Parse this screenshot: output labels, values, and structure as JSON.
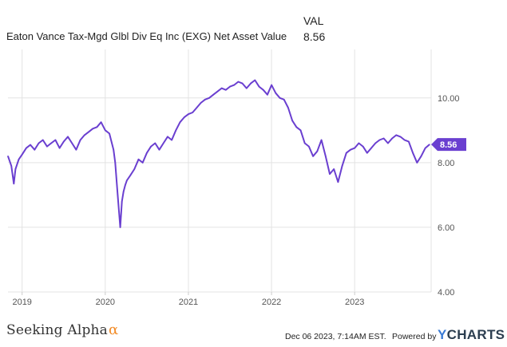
{
  "legend": {
    "column_header": "VAL",
    "series_name": "Eaton Vance Tax-Mgd Glbl Div Eq Inc (EXG) Net Asset Value",
    "series_value": "8.56"
  },
  "footer": {
    "brand_left": "Seeking Alpha",
    "brand_left_symbol": "α",
    "timestamp": "Dec 06 2023, 7:14AM EST.",
    "powered_by": "Powered by",
    "brand_right_prefix": "Y",
    "brand_right": "CHARTS"
  },
  "chart_data": {
    "type": "line",
    "title": "",
    "xlabel": "",
    "ylabel": "",
    "ylim": [
      4.0,
      11.5
    ],
    "y_ticks": [
      "4.00",
      "6.00",
      "8.00",
      "10.00"
    ],
    "x_ticks": [
      "2019",
      "2020",
      "2021",
      "2022",
      "2023"
    ],
    "grid": true,
    "legend_position": "top-left",
    "current_value_label": "8.56",
    "colors": {
      "line": "#6a3fd0",
      "grid": "#e3e3e3",
      "axis_text": "#555555"
    },
    "series": [
      {
        "name": "Eaton Vance Tax-Mgd Glbl Div Eq Inc (EXG) Net Asset Value",
        "x": [
          2018.83,
          2018.87,
          2018.9,
          2018.92,
          2018.96,
          2019.0,
          2019.05,
          2019.1,
          2019.15,
          2019.2,
          2019.25,
          2019.3,
          2019.35,
          2019.4,
          2019.45,
          2019.5,
          2019.55,
          2019.6,
          2019.65,
          2019.7,
          2019.75,
          2019.8,
          2019.85,
          2019.9,
          2019.95,
          2020.0,
          2020.05,
          2020.1,
          2020.12,
          2020.15,
          2020.18,
          2020.2,
          2020.22,
          2020.24,
          2020.26,
          2020.3,
          2020.35,
          2020.4,
          2020.45,
          2020.5,
          2020.55,
          2020.6,
          2020.65,
          2020.7,
          2020.75,
          2020.8,
          2020.85,
          2020.9,
          2020.95,
          2021.0,
          2021.05,
          2021.1,
          2021.15,
          2021.2,
          2021.25,
          2021.3,
          2021.35,
          2021.4,
          2021.45,
          2021.5,
          2021.55,
          2021.6,
          2021.65,
          2021.7,
          2021.75,
          2021.8,
          2021.85,
          2021.9,
          2021.95,
          2022.0,
          2022.05,
          2022.1,
          2022.15,
          2022.2,
          2022.25,
          2022.3,
          2022.35,
          2022.4,
          2022.45,
          2022.5,
          2022.55,
          2022.6,
          2022.65,
          2022.7,
          2022.75,
          2022.8,
          2022.85,
          2022.9,
          2022.95,
          2023.0,
          2023.05,
          2023.1,
          2023.15,
          2023.2,
          2023.25,
          2023.3,
          2023.35,
          2023.4,
          2023.45,
          2023.5,
          2023.55,
          2023.6,
          2023.65,
          2023.7,
          2023.75,
          2023.8,
          2023.85,
          2023.9
        ],
        "y": [
          8.2,
          7.9,
          7.35,
          7.8,
          8.1,
          8.25,
          8.45,
          8.55,
          8.4,
          8.6,
          8.7,
          8.5,
          8.6,
          8.7,
          8.45,
          8.65,
          8.8,
          8.6,
          8.4,
          8.7,
          8.85,
          8.95,
          9.05,
          9.1,
          9.25,
          9.0,
          8.9,
          8.4,
          8.0,
          7.0,
          6.0,
          6.8,
          7.1,
          7.3,
          7.45,
          7.6,
          7.8,
          8.1,
          8.0,
          8.3,
          8.5,
          8.6,
          8.4,
          8.6,
          8.8,
          8.7,
          9.0,
          9.25,
          9.4,
          9.5,
          9.55,
          9.7,
          9.85,
          9.95,
          10.0,
          10.1,
          10.2,
          10.3,
          10.25,
          10.35,
          10.4,
          10.5,
          10.45,
          10.3,
          10.45,
          10.55,
          10.35,
          10.25,
          10.1,
          10.4,
          10.15,
          10.0,
          9.95,
          9.7,
          9.3,
          9.1,
          9.0,
          8.6,
          8.5,
          8.2,
          8.35,
          8.7,
          8.2,
          7.65,
          7.8,
          7.4,
          7.9,
          8.3,
          8.4,
          8.45,
          8.6,
          8.5,
          8.3,
          8.45,
          8.6,
          8.7,
          8.75,
          8.6,
          8.75,
          8.85,
          8.8,
          8.7,
          8.65,
          8.3,
          8.0,
          8.2,
          8.45,
          8.56
        ]
      }
    ]
  }
}
